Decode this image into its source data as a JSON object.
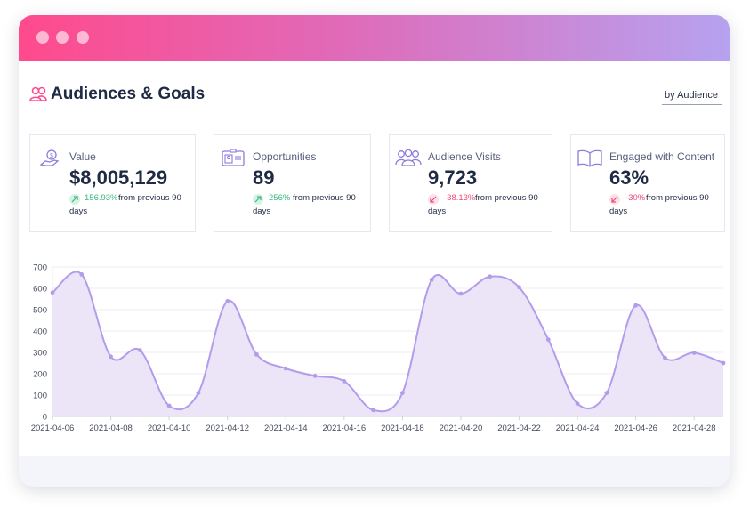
{
  "header": {
    "title": "Audiences & Goals",
    "dropdown_label": "by Audience"
  },
  "cards": [
    {
      "title": "Value",
      "value": "$8,005,129",
      "change": "156.93%",
      "direction": "up",
      "compare_text": "from previous 90",
      "compare_unit": "days",
      "icon": "money-hand-icon"
    },
    {
      "title": "Opportunities",
      "value": "89",
      "change": "256%",
      "direction": "up",
      "compare_text": "from previous 90",
      "compare_unit": "days",
      "icon": "id-card-icon"
    },
    {
      "title": "Audience Visits",
      "value": "9,723",
      "change": "-38.13%",
      "direction": "down",
      "compare_text": "from previous 90",
      "compare_unit": "days",
      "icon": "people-group-icon"
    },
    {
      "title": "Engaged with Content",
      "value": "63%",
      "change": "-30%",
      "direction": "down",
      "compare_text": "from previous 90",
      "compare_unit": "days",
      "icon": "open-book-icon"
    }
  ],
  "colors": {
    "accent": "#ff4a8d",
    "line": "#b39ceb",
    "fill": "#ebe5f7",
    "up": "#3bb77e",
    "down": "#f04a7a",
    "title": "#1f2a44"
  },
  "chart_data": {
    "type": "area",
    "x": [
      "2021-04-06",
      "2021-04-07",
      "2021-04-08",
      "2021-04-09",
      "2021-04-10",
      "2021-04-11",
      "2021-04-12",
      "2021-04-13",
      "2021-04-14",
      "2021-04-15",
      "2021-04-16",
      "2021-04-17",
      "2021-04-18",
      "2021-04-19",
      "2021-04-20",
      "2021-04-21",
      "2021-04-22",
      "2021-04-23",
      "2021-04-24",
      "2021-04-25",
      "2021-04-26",
      "2021-04-27",
      "2021-04-28",
      "2021-04-29"
    ],
    "series": [
      {
        "values": [
          580,
          665,
          280,
          310,
          50,
          110,
          540,
          290,
          225,
          190,
          165,
          30,
          110,
          640,
          575,
          655,
          605,
          360,
          60,
          110,
          520,
          275,
          298,
          250
        ]
      }
    ],
    "xticks": [
      "2021-04-06",
      "2021-04-08",
      "2021-04-10",
      "2021-04-12",
      "2021-04-14",
      "2021-04-16",
      "2021-04-18",
      "2021-04-20",
      "2021-04-22",
      "2021-04-24",
      "2021-04-26",
      "2021-04-28"
    ],
    "yticks": [
      "0",
      "100",
      "200",
      "300",
      "400",
      "500",
      "600",
      "700"
    ],
    "ylim": [
      0,
      700
    ],
    "grid": true
  }
}
